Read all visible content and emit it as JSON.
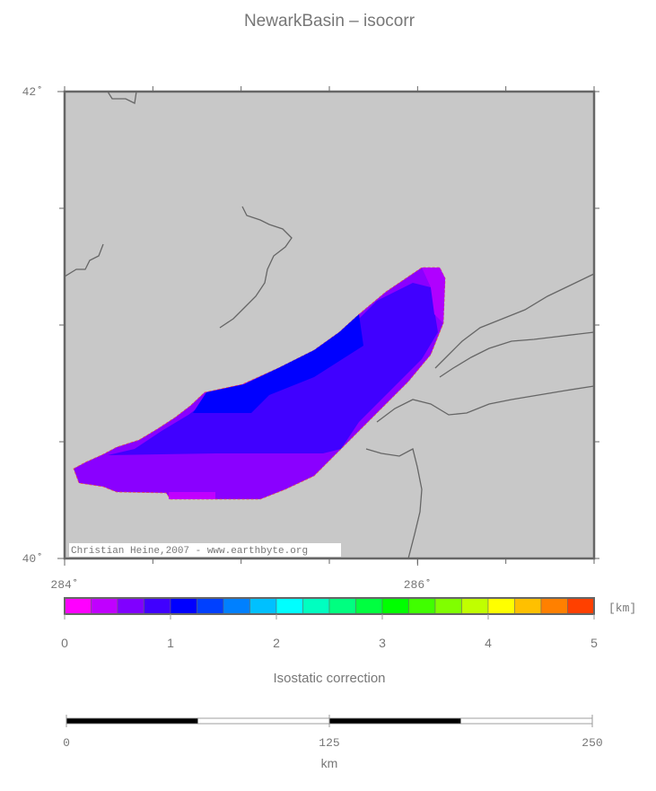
{
  "title": "NewarkBasin – isocorr",
  "map": {
    "xlim": [
      284,
      287
    ],
    "ylim": [
      40,
      42
    ],
    "lon_ticks": [
      {
        "value": 284,
        "label": "284˚"
      },
      {
        "value": 286,
        "label": "286˚"
      }
    ],
    "lat_ticks": [
      {
        "value": 42,
        "label": "42˚"
      },
      {
        "value": 40,
        "label": "40˚"
      }
    ],
    "credit": "Christian Heine,2007 - www.earthbyte.org"
  },
  "colorbar": {
    "range": [
      0,
      5
    ],
    "ticks": [
      0,
      1,
      2,
      3,
      4,
      5
    ],
    "unit": "[km]",
    "label": "Isostatic correction",
    "colors": [
      "#ff00ff",
      "#c000ff",
      "#8000ff",
      "#4000ff",
      "#0000ff",
      "#0040ff",
      "#0080ff",
      "#00c0ff",
      "#00ffff",
      "#00ffc0",
      "#00ff80",
      "#00ff40",
      "#00ff00",
      "#40ff00",
      "#80ff00",
      "#c0ff00",
      "#ffff00",
      "#ffc000",
      "#ff8000",
      "#ff4000"
    ]
  },
  "scalebar": {
    "range": [
      0,
      250
    ],
    "ticks": [
      0,
      125,
      250
    ],
    "unit": "km"
  }
}
